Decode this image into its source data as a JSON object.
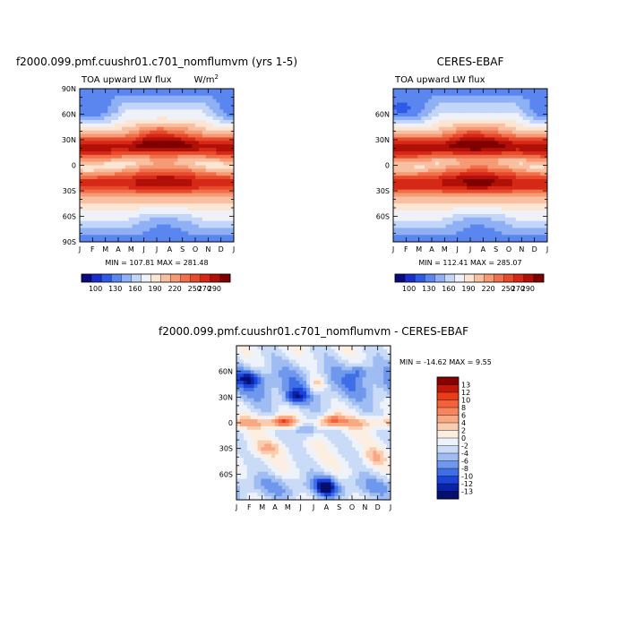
{
  "panels": [
    {
      "id": "model",
      "title": "f2000.099.pmf.cuushr01.c701_nomflumvm (yrs 1-5)",
      "subtitle_left": "TOA upward LW flux",
      "subtitle_right": "W/m",
      "units_superscript": "2",
      "minmax": "MIN = 107.81 MAX = 281.48"
    },
    {
      "id": "obs",
      "title": "CERES-EBAF",
      "subtitle_left": "TOA upward LW flux",
      "minmax": "MIN = 112.41 MAX = 285.07"
    },
    {
      "id": "diff",
      "title": "f2000.099.pmf.cuushr01.c701_nomflumvm - CERES-EBAF",
      "minmax": "MIN = -14.62 MAX =   9.55"
    }
  ],
  "axes": {
    "months": [
      "J",
      "F",
      "M",
      "A",
      "M",
      "J",
      "J",
      "A",
      "S",
      "O",
      "N",
      "D",
      "J"
    ],
    "lat_ticks_full": [
      "90N",
      "60N",
      "30N",
      "0",
      "30S",
      "60S",
      "90S"
    ],
    "lat_ticks_inner": [
      "60N",
      "30N",
      "0",
      "30S",
      "60S"
    ]
  },
  "colorbar_abs": {
    "labels": [
      "100",
      "130",
      "160",
      "190",
      "220",
      "250",
      "270",
      "290"
    ],
    "colors": [
      "#0a0a80",
      "#1a2ed0",
      "#2f5ae8",
      "#5b86f0",
      "#8fb0f5",
      "#c3d6fa",
      "#eef2f8",
      "#fde5d3",
      "#f8c0a0",
      "#f59a74",
      "#f0704c",
      "#e84a2c",
      "#d62816",
      "#b01008",
      "#800000"
    ]
  },
  "colorbar_diff": {
    "labels": [
      "13",
      "12",
      "10",
      "8",
      "6",
      "4",
      "2",
      "0",
      "-2",
      "-4",
      "-6",
      "-8",
      "-10",
      "-12",
      "-13"
    ],
    "colors": [
      "#8a0000",
      "#c01808",
      "#e83c1a",
      "#f4603a",
      "#f6845c",
      "#f8a882",
      "#fbcdb0",
      "#fdeee2",
      "#eef3fb",
      "#c9dbf7",
      "#9fbdf2",
      "#6f98ec",
      "#3f6fe6",
      "#1b43d8",
      "#0a22a8",
      "#050f70"
    ]
  },
  "chart_data": [
    {
      "type": "heatmap",
      "title": "f2000.099.pmf.cuushr01.c701_nomflumvm (yrs 1-5)",
      "subtitle": "TOA upward LW flux (W/m2)",
      "x": [
        "J",
        "F",
        "M",
        "A",
        "M",
        "J",
        "J",
        "A",
        "S",
        "O",
        "N",
        "D",
        "J"
      ],
      "y_range": [
        -90,
        90
      ],
      "y_ticks": [
        "90S",
        "60S",
        "30S",
        "0",
        "30N",
        "60N",
        "90N"
      ],
      "levels": [
        100,
        110,
        120,
        130,
        140,
        150,
        160,
        170,
        180,
        190,
        200,
        210,
        220,
        230,
        240,
        250,
        260,
        270,
        280,
        290
      ],
      "min": 107.81,
      "max": 281.48
    },
    {
      "type": "heatmap",
      "title": "CERES-EBAF",
      "subtitle": "TOA upward LW flux",
      "x": [
        "J",
        "F",
        "M",
        "A",
        "M",
        "J",
        "J",
        "A",
        "S",
        "O",
        "N",
        "D",
        "J"
      ],
      "y_range": [
        -90,
        90
      ],
      "y_ticks": [
        "60S",
        "30S",
        "0",
        "30N",
        "60N"
      ],
      "levels": [
        100,
        110,
        120,
        130,
        140,
        150,
        160,
        170,
        180,
        190,
        200,
        210,
        220,
        230,
        240,
        250,
        260,
        270,
        280,
        290
      ],
      "min": 112.41,
      "max": 285.07
    },
    {
      "type": "heatmap",
      "title": "f2000.099.pmf.cuushr01.c701_nomflumvm - CERES-EBAF",
      "x": [
        "J",
        "F",
        "M",
        "A",
        "M",
        "J",
        "J",
        "A",
        "S",
        "O",
        "N",
        "D",
        "J"
      ],
      "y_range": [
        -90,
        90
      ],
      "y_ticks": [
        "60S",
        "30S",
        "0",
        "30N",
        "60N"
      ],
      "levels": [
        -13,
        -12,
        -10,
        -8,
        -6,
        -4,
        -2,
        0,
        2,
        4,
        6,
        8,
        10,
        12,
        13
      ],
      "min": -14.62,
      "max": 9.55
    }
  ]
}
